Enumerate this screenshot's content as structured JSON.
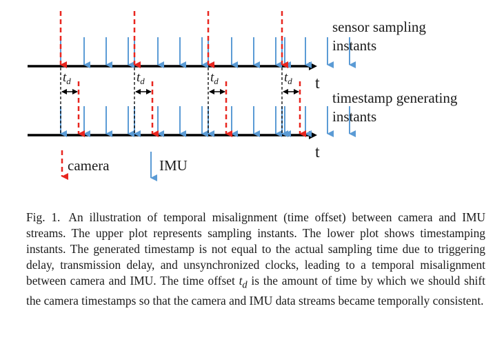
{
  "figure": {
    "labels": {
      "upper_line": [
        "sensor sampling",
        "instants"
      ],
      "lower_line": [
        "timestamp generating",
        "instants"
      ],
      "axis_upper": "t",
      "axis_lower": "t",
      "offset_symbol": "t",
      "offset_subscript": "d",
      "legend_camera": "camera",
      "legend_imu": "IMU"
    },
    "colors": {
      "camera": "#e8261f",
      "imu": "#5b9bd5",
      "axis": "#000000",
      "guide": "#000000"
    },
    "icons": {
      "camera": "red-dashed-down-arrow",
      "imu": "blue-down-arrow"
    },
    "series": {
      "camera_samples": 4,
      "imu_samples_per_camera_interval": 4
    }
  },
  "caption": {
    "figure_number": "Fig. 1.",
    "part1": "An illustration of temporal misalignment (time offset) between camera and IMU streams. The upper plot represents sampling instants. The lower plot shows timestamping instants. The generated timestamp is not equal to the actual sampling time due to triggering delay, transmission delay, and unsynchronized clocks, leading to a temporal misalignment between camera and IMU. The time offset ",
    "symbol": "t",
    "symbol_sub": "d",
    "part2": " is the amount of time by which we should shift the camera timestamps so that the camera and IMU data streams became temporally consistent."
  }
}
